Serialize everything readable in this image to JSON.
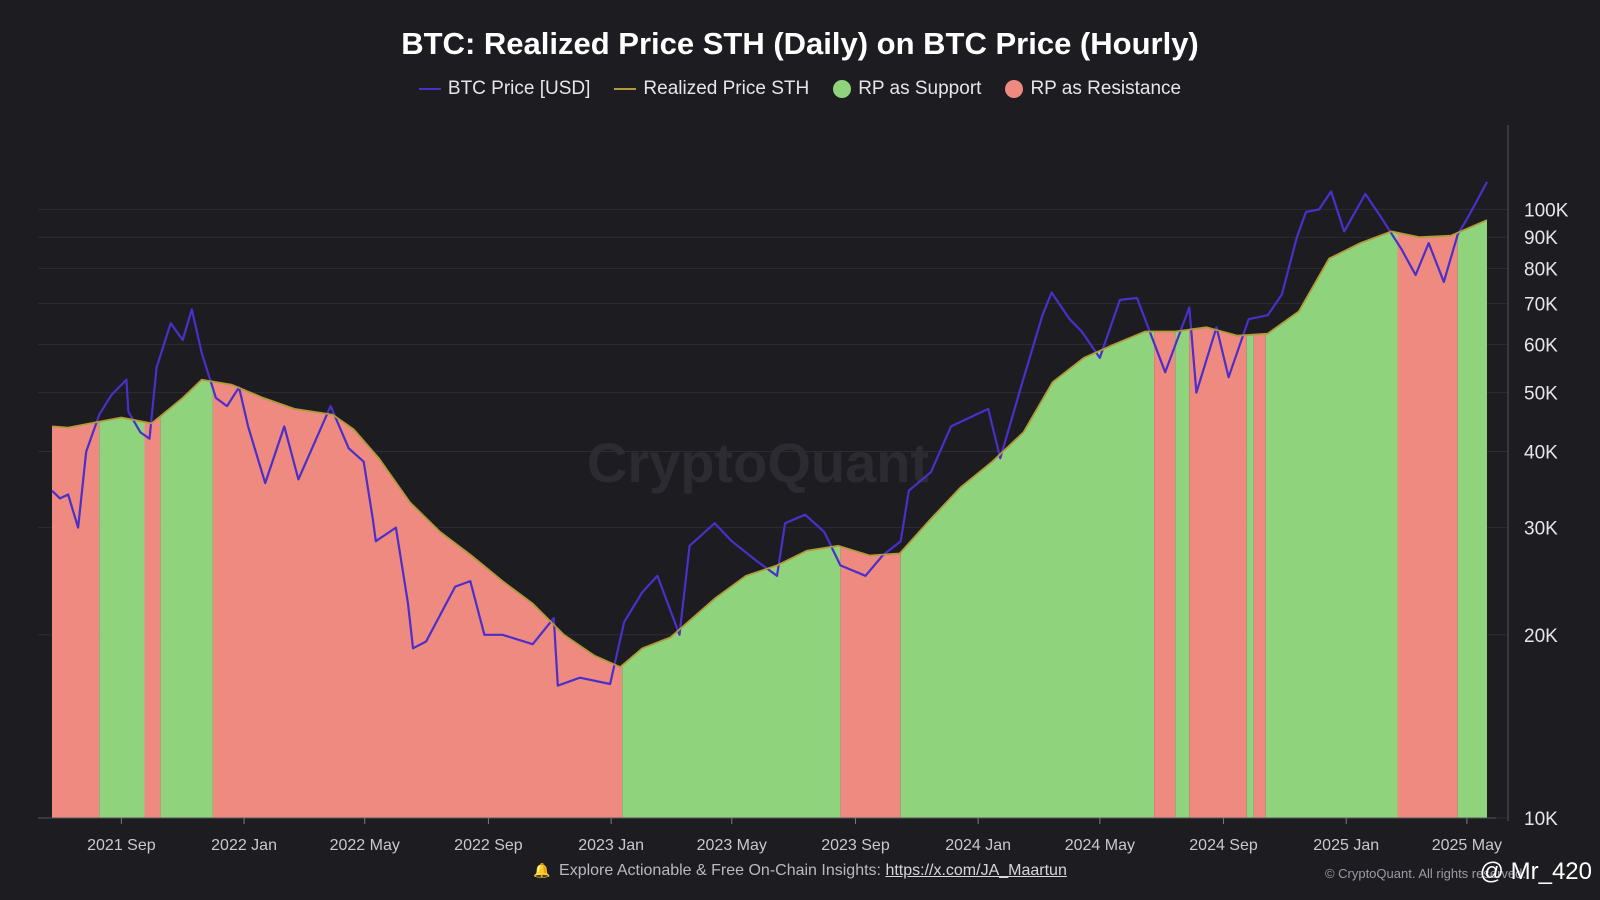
{
  "chart_data": {
    "type": "line",
    "title": "BTC: Realized Price STH (Daily) on BTC Price (Hourly)",
    "y_scale": "log",
    "ylim": [
      10000,
      130000
    ],
    "xlim": [
      "2021-06-24",
      "2025-05-22"
    ],
    "grid": "horizontal",
    "legend_position": "top-center",
    "watermark": "CryptoQuant",
    "y_ticks": [
      {
        "value": 10000,
        "label": "10K"
      },
      {
        "value": 20000,
        "label": "20K"
      },
      {
        "value": 30000,
        "label": "30K"
      },
      {
        "value": 40000,
        "label": "40K"
      },
      {
        "value": 50000,
        "label": "50K"
      },
      {
        "value": 60000,
        "label": "60K"
      },
      {
        "value": 70000,
        "label": "70K"
      },
      {
        "value": 80000,
        "label": "80K"
      },
      {
        "value": 90000,
        "label": "90K"
      },
      {
        "value": 100000,
        "label": "100K"
      }
    ],
    "x_ticks": [
      {
        "date": "2021-09-01",
        "label": "2021 Sep"
      },
      {
        "date": "2022-01-01",
        "label": "2022 Jan"
      },
      {
        "date": "2022-05-01",
        "label": "2022 May"
      },
      {
        "date": "2022-09-01",
        "label": "2022 Sep"
      },
      {
        "date": "2023-01-01",
        "label": "2023 Jan"
      },
      {
        "date": "2023-05-01",
        "label": "2023 May"
      },
      {
        "date": "2023-09-01",
        "label": "2023 Sep"
      },
      {
        "date": "2024-01-01",
        "label": "2024 Jan"
      },
      {
        "date": "2024-05-01",
        "label": "2024 May"
      },
      {
        "date": "2024-09-01",
        "label": "2024 Sep"
      },
      {
        "date": "2025-01-01",
        "label": "2025 Jan"
      },
      {
        "date": "2025-05-01",
        "label": "2025 May"
      }
    ],
    "legend": [
      {
        "name": "BTC Price [USD]",
        "kind": "line",
        "color": "#4b2fc9"
      },
      {
        "name": "Realized Price STH",
        "kind": "line",
        "color": "#b09a3a"
      },
      {
        "name": "RP as Support",
        "kind": "dot",
        "color": "#8fd47c"
      },
      {
        "name": "RP as Resistance",
        "kind": "dot",
        "color": "#ee8a80"
      }
    ],
    "series": [
      {
        "name": "BTC Price [USD]",
        "color": "#4b2fc9",
        "points": [
          [
            "2021-06-24",
            34500
          ],
          [
            "2021-07-02",
            33500
          ],
          [
            "2021-07-10",
            34000
          ],
          [
            "2021-07-20",
            30000
          ],
          [
            "2021-07-28",
            40000
          ],
          [
            "2021-08-10",
            46000
          ],
          [
            "2021-08-22",
            49500
          ],
          [
            "2021-09-06",
            52500
          ],
          [
            "2021-09-08",
            46500
          ],
          [
            "2021-09-20",
            43000
          ],
          [
            "2021-09-29",
            42000
          ],
          [
            "2021-10-06",
            55000
          ],
          [
            "2021-10-20",
            65000
          ],
          [
            "2021-11-01",
            61000
          ],
          [
            "2021-11-10",
            68500
          ],
          [
            "2021-11-20",
            58000
          ],
          [
            "2021-12-04",
            49000
          ],
          [
            "2021-12-15",
            47500
          ],
          [
            "2021-12-27",
            51000
          ],
          [
            "2022-01-05",
            44000
          ],
          [
            "2022-01-22",
            35500
          ],
          [
            "2022-02-10",
            44000
          ],
          [
            "2022-02-24",
            36000
          ],
          [
            "2022-03-28",
            47500
          ],
          [
            "2022-04-15",
            40500
          ],
          [
            "2022-04-30",
            38500
          ],
          [
            "2022-05-09",
            31000
          ],
          [
            "2022-05-12",
            28500
          ],
          [
            "2022-06-01",
            30000
          ],
          [
            "2022-06-13",
            22500
          ],
          [
            "2022-06-18",
            19000
          ],
          [
            "2022-07-01",
            19500
          ],
          [
            "2022-07-30",
            24000
          ],
          [
            "2022-08-14",
            24500
          ],
          [
            "2022-08-28",
            20000
          ],
          [
            "2022-09-15",
            20000
          ],
          [
            "2022-10-15",
            19300
          ],
          [
            "2022-11-05",
            21300
          ],
          [
            "2022-11-09",
            16500
          ],
          [
            "2022-12-01",
            17000
          ],
          [
            "2022-12-31",
            16600
          ],
          [
            "2023-01-14",
            21000
          ],
          [
            "2023-02-01",
            23500
          ],
          [
            "2023-02-16",
            25000
          ],
          [
            "2023-03-10",
            20000
          ],
          [
            "2023-03-20",
            28000
          ],
          [
            "2023-04-14",
            30500
          ],
          [
            "2023-05-01",
            28500
          ],
          [
            "2023-05-25",
            26500
          ],
          [
            "2023-06-15",
            25000
          ],
          [
            "2023-06-23",
            30500
          ],
          [
            "2023-07-13",
            31500
          ],
          [
            "2023-08-01",
            29500
          ],
          [
            "2023-08-17",
            26000
          ],
          [
            "2023-09-11",
            25000
          ],
          [
            "2023-09-28",
            27000
          ],
          [
            "2023-10-16",
            28500
          ],
          [
            "2023-10-24",
            34500
          ],
          [
            "2023-11-15",
            37000
          ],
          [
            "2023-12-05",
            44000
          ],
          [
            "2024-01-11",
            47000
          ],
          [
            "2024-01-23",
            39000
          ],
          [
            "2024-02-14",
            52000
          ],
          [
            "2024-03-05",
            67000
          ],
          [
            "2024-03-14",
            73000
          ],
          [
            "2024-04-01",
            66000
          ],
          [
            "2024-04-13",
            63000
          ],
          [
            "2024-05-01",
            57000
          ],
          [
            "2024-05-21",
            71000
          ],
          [
            "2024-06-07",
            71500
          ],
          [
            "2024-07-05",
            54000
          ],
          [
            "2024-07-29",
            69000
          ],
          [
            "2024-08-05",
            50000
          ],
          [
            "2024-08-25",
            64000
          ],
          [
            "2024-09-06",
            53000
          ],
          [
            "2024-09-26",
            66000
          ],
          [
            "2024-10-15",
            67000
          ],
          [
            "2024-10-29",
            72500
          ],
          [
            "2024-11-13",
            90000
          ],
          [
            "2024-11-22",
            99000
          ],
          [
            "2024-12-05",
            100000
          ],
          [
            "2024-12-17",
            107000
          ],
          [
            "2024-12-30",
            92000
          ],
          [
            "2025-01-20",
            106000
          ],
          [
            "2025-02-03",
            98000
          ],
          [
            "2025-02-25",
            86000
          ],
          [
            "2025-03-11",
            78000
          ],
          [
            "2025-03-24",
            88000
          ],
          [
            "2025-04-08",
            76000
          ],
          [
            "2025-04-22",
            91000
          ],
          [
            "2025-05-02",
            97000
          ],
          [
            "2025-05-12",
            104000
          ],
          [
            "2025-05-21",
            111000
          ]
        ]
      },
      {
        "name": "Realized Price STH",
        "color": "#b09a3a",
        "points": [
          [
            "2021-06-24",
            44000
          ],
          [
            "2021-07-10",
            43800
          ],
          [
            "2021-08-01",
            44500
          ],
          [
            "2021-09-01",
            45500
          ],
          [
            "2021-10-01",
            44500
          ],
          [
            "2021-11-01",
            49000
          ],
          [
            "2021-11-20",
            52500
          ],
          [
            "2021-12-20",
            51500
          ],
          [
            "2022-01-20",
            49000
          ],
          [
            "2022-02-20",
            47000
          ],
          [
            "2022-03-30",
            46000
          ],
          [
            "2022-04-20",
            43500
          ],
          [
            "2022-05-15",
            39000
          ],
          [
            "2022-06-15",
            33000
          ],
          [
            "2022-07-15",
            29500
          ],
          [
            "2022-08-15",
            27000
          ],
          [
            "2022-09-15",
            24500
          ],
          [
            "2022-10-15",
            22500
          ],
          [
            "2022-11-15",
            20000
          ],
          [
            "2022-12-15",
            18500
          ],
          [
            "2023-01-10",
            17700
          ],
          [
            "2023-02-01",
            19000
          ],
          [
            "2023-03-01",
            19800
          ],
          [
            "2023-04-15",
            23000
          ],
          [
            "2023-05-15",
            25000
          ],
          [
            "2023-06-15",
            26000
          ],
          [
            "2023-07-15",
            27500
          ],
          [
            "2023-08-15",
            28000
          ],
          [
            "2023-09-15",
            27000
          ],
          [
            "2023-10-15",
            27200
          ],
          [
            "2023-11-15",
            31000
          ],
          [
            "2023-12-15",
            35000
          ],
          [
            "2024-01-15",
            38500
          ],
          [
            "2024-02-15",
            43000
          ],
          [
            "2024-03-15",
            52000
          ],
          [
            "2024-04-15",
            57000
          ],
          [
            "2024-05-15",
            60000
          ],
          [
            "2024-06-15",
            63000
          ],
          [
            "2024-07-15",
            63000
          ],
          [
            "2024-08-15",
            64000
          ],
          [
            "2024-09-15",
            62000
          ],
          [
            "2024-10-15",
            62500
          ],
          [
            "2024-11-15",
            68000
          ],
          [
            "2024-12-15",
            83000
          ],
          [
            "2025-01-15",
            88000
          ],
          [
            "2025-02-15",
            92000
          ],
          [
            "2025-03-15",
            90000
          ],
          [
            "2025-04-15",
            90500
          ],
          [
            "2025-05-21",
            96000
          ]
        ]
      }
    ],
    "regions": [
      {
        "start": "2021-06-24",
        "end": "2021-08-10",
        "type": "RP as Resistance"
      },
      {
        "start": "2021-08-10",
        "end": "2021-09-24",
        "type": "RP as Support"
      },
      {
        "start": "2021-09-24",
        "end": "2021-10-10",
        "type": "RP as Resistance"
      },
      {
        "start": "2021-10-10",
        "end": "2021-12-01",
        "type": "RP as Support"
      },
      {
        "start": "2021-12-01",
        "end": "2023-01-12",
        "type": "RP as Resistance"
      },
      {
        "start": "2023-01-12",
        "end": "2023-08-17",
        "type": "RP as Support"
      },
      {
        "start": "2023-08-17",
        "end": "2023-10-16",
        "type": "RP as Resistance"
      },
      {
        "start": "2023-10-16",
        "end": "2024-06-24",
        "type": "RP as Support"
      },
      {
        "start": "2024-06-24",
        "end": "2024-07-15",
        "type": "RP as Resistance"
      },
      {
        "start": "2024-07-15",
        "end": "2024-07-29",
        "type": "RP as Support"
      },
      {
        "start": "2024-07-29",
        "end": "2024-09-24",
        "type": "RP as Resistance"
      },
      {
        "start": "2024-09-24",
        "end": "2024-10-01",
        "type": "RP as Support"
      },
      {
        "start": "2024-10-01",
        "end": "2024-10-13",
        "type": "RP as Resistance"
      },
      {
        "start": "2024-10-13",
        "end": "2025-02-21",
        "type": "RP as Support"
      },
      {
        "start": "2025-02-21",
        "end": "2025-04-22",
        "type": "RP as Resistance"
      },
      {
        "start": "2025-04-22",
        "end": "2025-05-21",
        "type": "RP as Support"
      }
    ]
  },
  "footer": {
    "text": "Explore Actionable & Free On-Chain Insights:",
    "link": "https://x.com/JA_Maartun"
  },
  "credit": "© CryptoQuant. All rights reserved.",
  "handle": "@ Mr_420"
}
